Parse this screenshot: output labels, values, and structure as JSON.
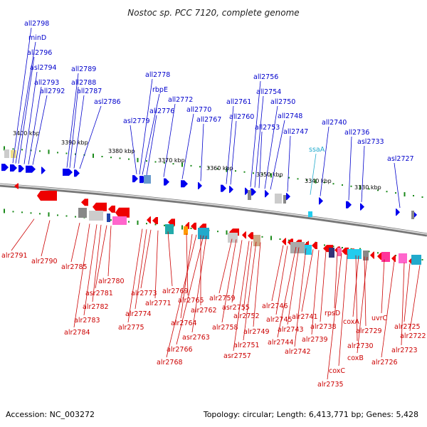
{
  "title": "Nostoc sp. PCC 7120, complete genome",
  "footer": {
    "accession": "Accession: NC_003272",
    "topology": "Topology: circular; Length: 6,413,771 bp; Genes: 5,428"
  },
  "colors": {
    "forward_gene": "#0000ee",
    "reverse_gene": "#ee0000",
    "top_label": "#0000cc",
    "bottom_label": "#cc0000",
    "rna_label": "#22aacc",
    "backbone": "#777777",
    "tick": "#1a8a1a"
  },
  "scale_labels": [
    "3400 kbp",
    "3390 kbp",
    "3380 kbp",
    "3370 kbp",
    "3360 kbp",
    "3350 kbp",
    "3340 kbp",
    "3330 kbp"
  ],
  "top_genes": [
    "all2798",
    "minD",
    "all2796",
    "asl2794",
    "all2793",
    "all2792",
    "all2789",
    "all2788",
    "all2787",
    "asl2786",
    "all2778",
    "rbpE",
    "all2776",
    "asl2779",
    "all2772",
    "all2770",
    "all2767",
    "all2761",
    "all2760",
    "all2756",
    "all2754",
    "all2753",
    "all2750",
    "all2748",
    "all2747",
    "ssaA",
    "all2740",
    "all2736",
    "asl2733",
    "asl2727"
  ],
  "bottom_genes": [
    "alr2791",
    "alr2790",
    "alr2785",
    "alr2780",
    "asr2781",
    "alr2782",
    "alr2783",
    "alr2784",
    "alr2773",
    "alr2774",
    "alr2775",
    "alr2771",
    "alr2769",
    "alr2765",
    "alr2762",
    "alr2764",
    "alr2766",
    "alr2768",
    "asr2763",
    "alr2759",
    "asr2755",
    "alr2758",
    "asr2757",
    "alr2752",
    "alr2751",
    "alr2749",
    "alr2746",
    "alr2745",
    "alr2744",
    "alr2743",
    "alr2742",
    "alr2741",
    "alr2739",
    "alr2738",
    "rpsD",
    "alr2735",
    "coxC",
    "coxA",
    "alr2729",
    "alr2730",
    "coxB",
    "uvrC",
    "alr2726",
    "alr2725",
    "alr2723",
    "alr2722"
  ]
}
